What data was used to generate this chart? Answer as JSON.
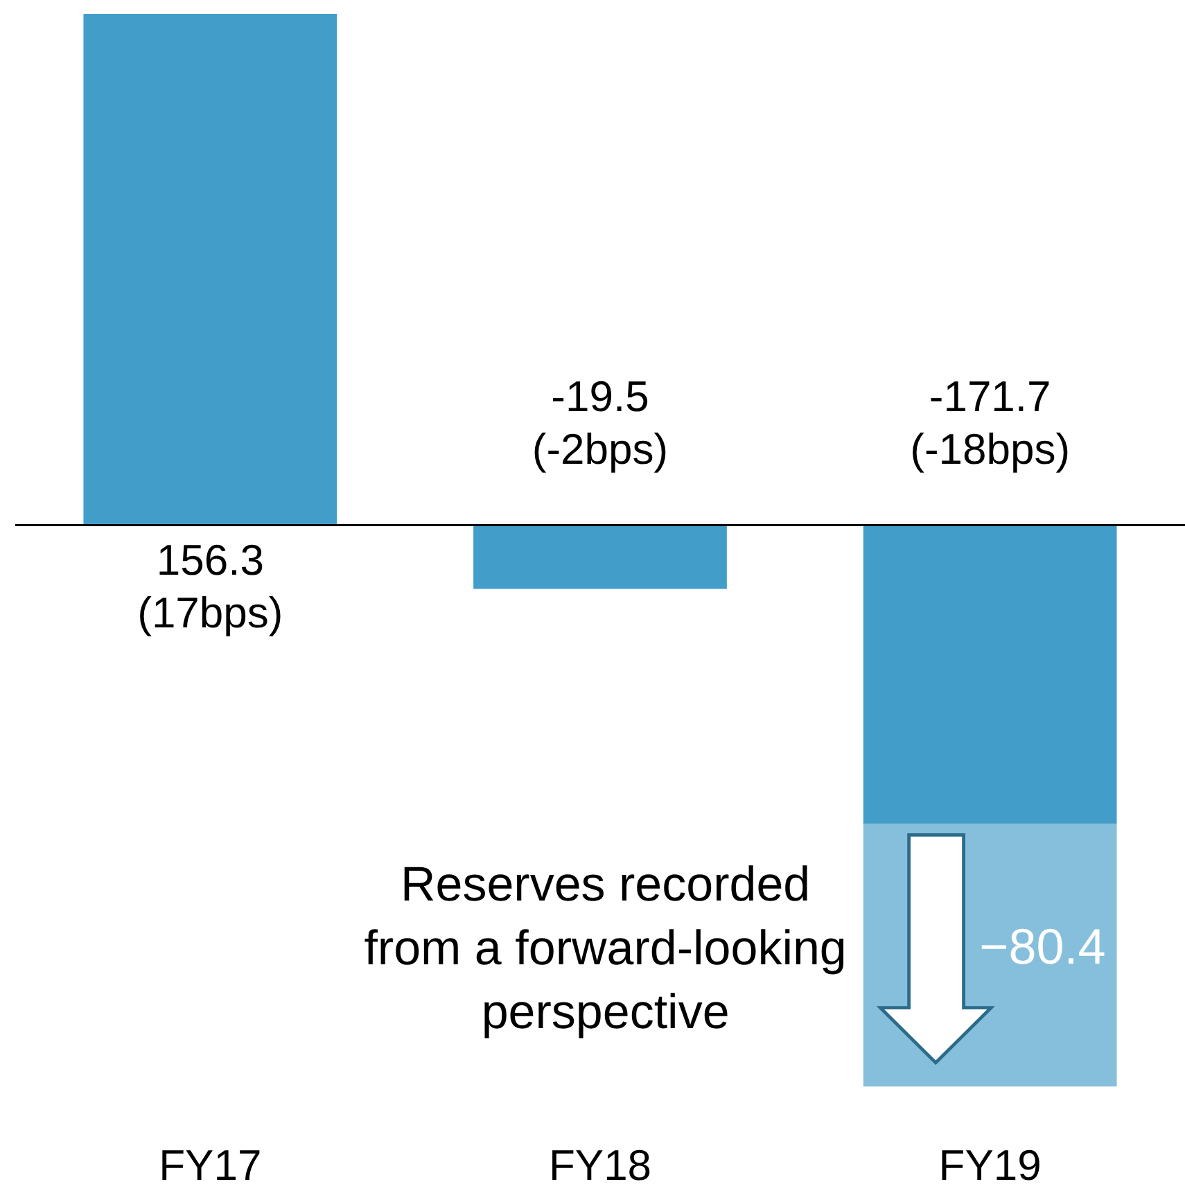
{
  "chart_data": {
    "type": "bar",
    "stacked": true,
    "categories": [
      "FY17",
      "FY18",
      "FY19"
    ],
    "series": [
      {
        "color": "#439dc9",
        "values": [
          156.3,
          -19.5,
          -91.3
        ]
      },
      {
        "color": "#86bfdb",
        "values": [
          null,
          null,
          -80.4
        ],
        "value_labels": [
          null,
          null,
          "−80.4"
        ]
      }
    ],
    "totals": [
      "156.3\n(17bps)",
      "-19.5\n(-2bps)",
      "-171.7\n(-18bps)"
    ],
    "annotations": [
      "Reserves recorded from a forward-looking perspective"
    ],
    "tick_labels": "x",
    "grid": false,
    "legend": false
  }
}
